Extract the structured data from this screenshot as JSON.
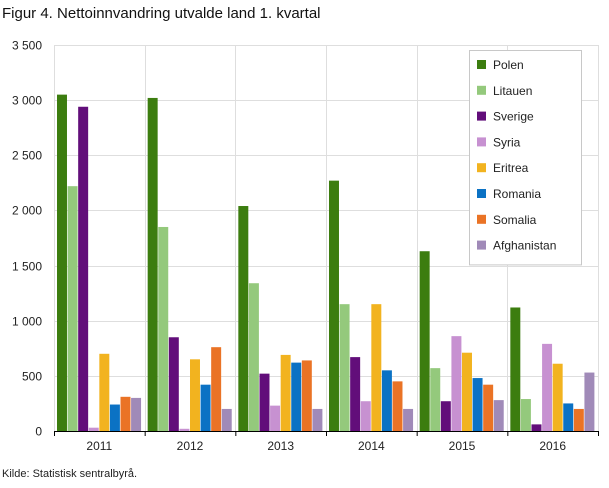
{
  "title": "Figur 4. Nettoinnvandring utvalde land 1. kvartal",
  "source": "Kilde: Statistisk sentralbyrå.",
  "chart_data": {
    "type": "bar",
    "categories": [
      "2011",
      "2012",
      "2013",
      "2014",
      "2015",
      "2016"
    ],
    "ylim": [
      0,
      3500
    ],
    "yticks": [
      0,
      500,
      1000,
      1500,
      2000,
      2500,
      3000,
      3500
    ],
    "ytick_labels": [
      "0",
      "500",
      "1 000",
      "1 500",
      "2 000",
      "2 500",
      "3 000",
      "3 500"
    ],
    "grid": true,
    "legend_position": "top-right",
    "series": [
      {
        "name": "Polen",
        "color": "#3c7d0f",
        "values": [
          3050,
          3020,
          2040,
          2270,
          1630,
          1120
        ]
      },
      {
        "name": "Litauen",
        "color": "#94c97c",
        "values": [
          2220,
          1850,
          1340,
          1150,
          570,
          290
        ]
      },
      {
        "name": "Sverige",
        "color": "#620e7a",
        "values": [
          2940,
          850,
          520,
          670,
          270,
          60
        ]
      },
      {
        "name": "Syria",
        "color": "#c791d1",
        "values": [
          30,
          20,
          230,
          270,
          860,
          790
        ]
      },
      {
        "name": "Eritrea",
        "color": "#f2b31f",
        "values": [
          700,
          650,
          690,
          1150,
          710,
          610
        ]
      },
      {
        "name": "Romania",
        "color": "#0b72c4",
        "values": [
          240,
          420,
          620,
          550,
          480,
          250
        ]
      },
      {
        "name": "Somalia",
        "color": "#ea7325",
        "values": [
          310,
          760,
          640,
          450,
          420,
          200
        ]
      },
      {
        "name": "Afghanistan",
        "color": "#a08ab8",
        "values": [
          300,
          200,
          200,
          200,
          280,
          530
        ]
      }
    ]
  }
}
